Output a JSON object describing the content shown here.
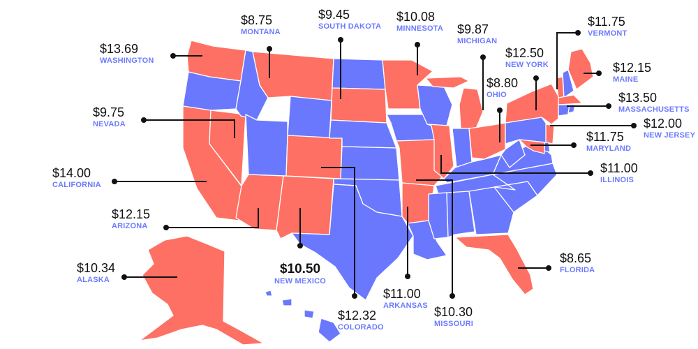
{
  "colors": {
    "above_group": "#fe7063",
    "below_group": "#6a78fd",
    "border": "#ffffff",
    "leader_line": "#111111",
    "value_text": "#111111",
    "state_name_text": "#6c7bff"
  },
  "labels": {
    "washington": {
      "value": "$13.69",
      "state": "WASHINGTON"
    },
    "montana": {
      "value": "$8.75",
      "state": "MONTANA"
    },
    "south_dakota": {
      "value": "$9.45",
      "state": "SOUTH DAKOTA"
    },
    "minnesota": {
      "value": "$10.08",
      "state": "MINNESOTA"
    },
    "michigan": {
      "value": "$9.87",
      "state": "MICHIGAN"
    },
    "new_york": {
      "value": "$12.50",
      "state": "NEW YORK"
    },
    "ohio": {
      "value": "$8.80",
      "state": "OHIO"
    },
    "vermont": {
      "value": "$11.75",
      "state": "VERMONT"
    },
    "maine": {
      "value": "$12.15",
      "state": "MAINE"
    },
    "massachusetts": {
      "value": "$13.50",
      "state": "MASSACHUSETTS"
    },
    "new_jersey": {
      "value": "$12.00",
      "state": "NEW JERSEY"
    },
    "maryland": {
      "value": "$11.75",
      "state": "MARYLAND"
    },
    "illinois": {
      "value": "$11.00",
      "state": "ILLINOIS"
    },
    "nevada": {
      "value": "$9.75",
      "state": "NEVADA"
    },
    "california": {
      "value": "$14.00",
      "state": "CALIFORNIA"
    },
    "arizona": {
      "value": "$12.15",
      "state": "ARIZONA"
    },
    "alaska": {
      "value": "$10.34",
      "state": "ALASKA"
    },
    "new_mexico": {
      "value": "$10.50",
      "state": "NEW MEXICO"
    },
    "colorado": {
      "value": "$12.32",
      "state": "COLORADO"
    },
    "arkansas": {
      "value": "$11.00",
      "state": "ARKANSAS"
    },
    "missouri": {
      "value": "$10.30",
      "state": "MISSOURI"
    },
    "florida": {
      "value": "$8.65",
      "state": "FLORIDA"
    }
  }
}
